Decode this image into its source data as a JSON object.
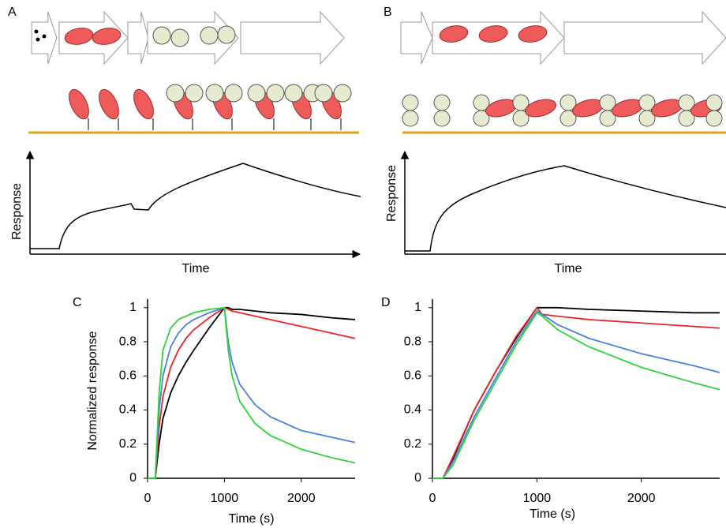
{
  "panel_a": {
    "label": "A",
    "y_axis": "Response",
    "x_axis": "Time"
  },
  "panel_b": {
    "label": "B",
    "y_axis": "Response",
    "x_axis": "Time"
  },
  "chart_data": [
    {
      "type": "line",
      "title": "C",
      "x_label": "Time (s)",
      "y_label": "Normalized response",
      "xlim": [
        0,
        2700
      ],
      "ylim": [
        0,
        1.05
      ],
      "xticks": [
        0,
        1000,
        2000
      ],
      "yticks": [
        0,
        0.2,
        0.4,
        0.6,
        0.8,
        1
      ],
      "x": [
        0,
        100,
        150,
        200,
        300,
        400,
        500,
        600,
        800,
        1000,
        1050,
        1100,
        1200,
        1400,
        1600,
        2000,
        2400,
        2700
      ],
      "series": [
        {
          "color": "#000000",
          "values": [
            0,
            0,
            0.2,
            0.35,
            0.5,
            0.6,
            0.68,
            0.75,
            0.88,
            1.0,
            1.0,
            0.99,
            0.99,
            0.98,
            0.97,
            0.96,
            0.94,
            0.93
          ]
        },
        {
          "color": "#e8262a",
          "values": [
            0,
            0,
            0.3,
            0.48,
            0.65,
            0.75,
            0.82,
            0.87,
            0.94,
            1.0,
            0.99,
            0.98,
            0.97,
            0.95,
            0.93,
            0.89,
            0.85,
            0.82
          ]
        },
        {
          "color": "#4a7fe0",
          "values": [
            0,
            0,
            0.4,
            0.6,
            0.77,
            0.85,
            0.9,
            0.93,
            0.97,
            1.0,
            0.8,
            0.68,
            0.55,
            0.43,
            0.36,
            0.28,
            0.24,
            0.21
          ]
        },
        {
          "color": "#2ed33a",
          "values": [
            0,
            0,
            0.5,
            0.75,
            0.88,
            0.93,
            0.95,
            0.97,
            0.99,
            1.0,
            0.75,
            0.6,
            0.45,
            0.32,
            0.25,
            0.17,
            0.12,
            0.09
          ]
        }
      ]
    },
    {
      "type": "line",
      "title": "D",
      "x_label": "Time (s)",
      "xlim": [
        0,
        2750
      ],
      "ylim": [
        0,
        1.05
      ],
      "xticks": [
        0,
        1000,
        2000
      ],
      "yticks": [
        0,
        0.2,
        0.4,
        0.6,
        0.8,
        1
      ],
      "x": [
        0,
        100,
        200,
        400,
        600,
        800,
        1000,
        1050,
        1200,
        1500,
        2000,
        2500,
        2750
      ],
      "series": [
        {
          "color": "#000000",
          "values": [
            0,
            0,
            0.12,
            0.4,
            0.62,
            0.82,
            1.0,
            1.0,
            1.0,
            0.99,
            0.98,
            0.97,
            0.97
          ]
        },
        {
          "color": "#e8262a",
          "values": [
            0,
            0,
            0.13,
            0.4,
            0.62,
            0.83,
            1.0,
            0.96,
            0.95,
            0.93,
            0.91,
            0.89,
            0.88
          ]
        },
        {
          "color": "#4a7fe0",
          "values": [
            0,
            0,
            0.1,
            0.36,
            0.58,
            0.8,
            0.98,
            0.96,
            0.9,
            0.82,
            0.73,
            0.66,
            0.62
          ]
        },
        {
          "color": "#2ed33a",
          "values": [
            0,
            0,
            0.08,
            0.34,
            0.56,
            0.78,
            0.97,
            0.95,
            0.87,
            0.77,
            0.65,
            0.56,
            0.52
          ]
        }
      ]
    }
  ]
}
